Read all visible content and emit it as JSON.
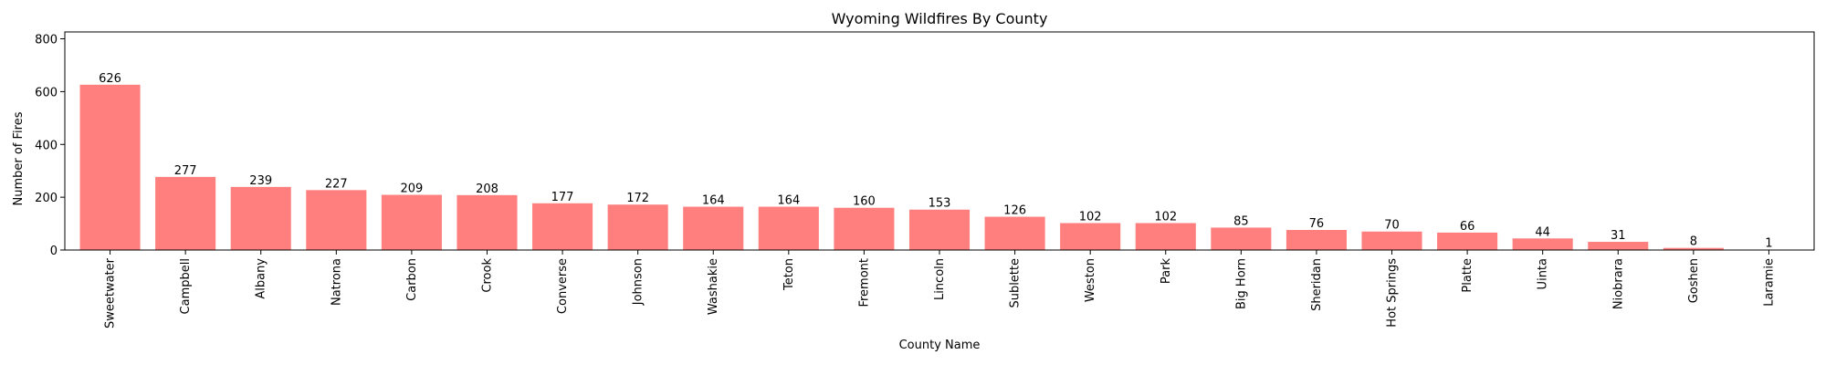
{
  "chart_data": {
    "type": "bar",
    "title": "Wyoming Wildfires By County",
    "xlabel": "County Name",
    "ylabel": "Number of Fires",
    "ylim": [
      0,
      826
    ],
    "yticks": [
      0,
      200,
      400,
      600,
      800
    ],
    "grid": false,
    "bar_color": "#ff7f7f",
    "categories": [
      "Sweetwater",
      "Campbell",
      "Albany",
      "Natrona",
      "Carbon",
      "Crook",
      "Converse",
      "Johnson",
      "Washakie",
      "Teton",
      "Fremont",
      "Lincoln",
      "Sublette",
      "Weston",
      "Park",
      "Big Horn",
      "Sheridan",
      "Hot Springs",
      "Platte",
      "Uinta",
      "Niobrara",
      "Goshen",
      "Laramie"
    ],
    "values": [
      626,
      277,
      239,
      227,
      209,
      208,
      177,
      172,
      164,
      164,
      160,
      153,
      126,
      102,
      102,
      85,
      76,
      70,
      66,
      44,
      31,
      8,
      1
    ]
  }
}
